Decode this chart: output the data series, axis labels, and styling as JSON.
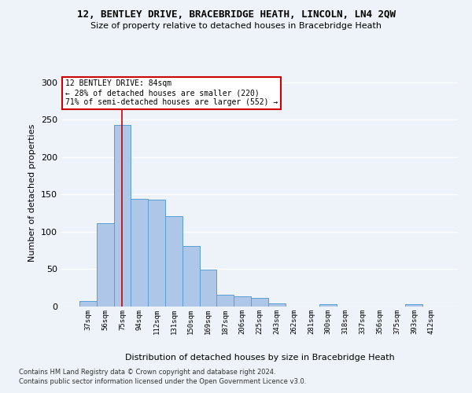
{
  "title1": "12, BENTLEY DRIVE, BRACEBRIDGE HEATH, LINCOLN, LN4 2QW",
  "title2": "Size of property relative to detached houses in Bracebridge Heath",
  "xlabel": "Distribution of detached houses by size in Bracebridge Heath",
  "ylabel": "Number of detached properties",
  "footer1": "Contains HM Land Registry data © Crown copyright and database right 2024.",
  "footer2": "Contains public sector information licensed under the Open Government Licence v3.0.",
  "categories": [
    "37sqm",
    "56sqm",
    "75sqm",
    "94sqm",
    "112sqm",
    "131sqm",
    "150sqm",
    "169sqm",
    "187sqm",
    "206sqm",
    "225sqm",
    "243sqm",
    "262sqm",
    "281sqm",
    "300sqm",
    "318sqm",
    "337sqm",
    "356sqm",
    "375sqm",
    "393sqm",
    "412sqm"
  ],
  "values": [
    7,
    111,
    243,
    144,
    143,
    121,
    81,
    49,
    16,
    14,
    12,
    4,
    0,
    0,
    3,
    0,
    0,
    0,
    0,
    3,
    0
  ],
  "bar_color": "#aec6e8",
  "bar_edge_color": "#5a9fd4",
  "vline_x_index": 2.0,
  "annotation_text": "12 BENTLEY DRIVE: 84sqm\n← 28% of detached houses are smaller (220)\n71% of semi-detached houses are larger (552) →",
  "annotation_box_color": "#ffffff",
  "annotation_box_edge_color": "#cc0000",
  "vline_color": "#cc0000",
  "ylim": [
    0,
    305
  ],
  "background_color": "#eef2f9",
  "grid_color": "#ffffff"
}
